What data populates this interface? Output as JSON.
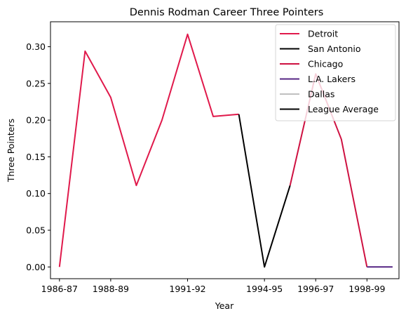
{
  "chart_data": {
    "type": "line",
    "title": "Dennis Rodman Career Three Pointers",
    "xlabel": "Year",
    "ylabel": "Three Pointers",
    "x_tick_labels": [
      "1986-87",
      "1988-89",
      "1991-92",
      "1994-95",
      "1996-97",
      "1998-99"
    ],
    "x_tick_seasons": [
      0,
      2,
      5,
      8,
      10,
      12
    ],
    "y_ticks": [
      "0.00",
      "0.05",
      "0.10",
      "0.15",
      "0.20",
      "0.25",
      "0.30"
    ],
    "ylim": [
      -0.016,
      0.334
    ],
    "xlim": [
      -0.35,
      13.25
    ],
    "grid": false,
    "legend_position": "upper right",
    "series": [
      {
        "name": "Detroit",
        "color": "#e0194b",
        "x": [
          0,
          1,
          2,
          3,
          4,
          5,
          6,
          7
        ],
        "y": [
          0.0,
          0.294,
          0.231,
          0.111,
          0.2,
          0.317,
          0.205,
          0.208
        ]
      },
      {
        "name": "San Antonio",
        "color": "#000000",
        "x": [
          7,
          8,
          9
        ],
        "y": [
          0.208,
          0.0,
          0.111
        ]
      },
      {
        "name": "Chicago",
        "color": "#ce1141",
        "x": [
          9,
          10,
          11,
          12
        ],
        "y": [
          0.111,
          0.263,
          0.174,
          0.0
        ]
      },
      {
        "name": "L.A. Lakers",
        "color": "#552583",
        "x": [
          12,
          13
        ],
        "y": [
          0.0,
          0.0
        ]
      },
      {
        "name": "Dallas",
        "color": "#c0c0c0",
        "x": [],
        "y": []
      },
      {
        "name": "League Average",
        "color": "#000000",
        "x": [],
        "y": []
      }
    ]
  }
}
